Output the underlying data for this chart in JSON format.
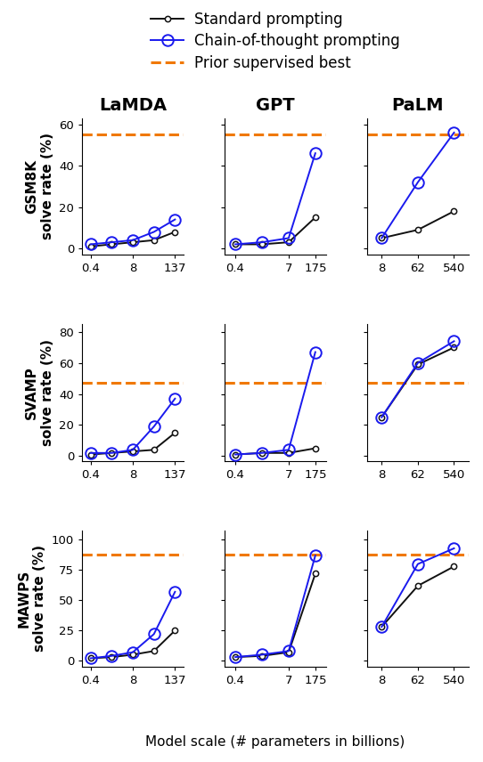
{
  "models": [
    "LaMDA",
    "GPT",
    "PaLM"
  ],
  "datasets": [
    "GSM8K",
    "SVAMP",
    "MAWPS"
  ],
  "x_tick_labels": {
    "LaMDA": [
      "0.4",
      "8",
      "137"
    ],
    "GPT": [
      "0.4",
      "7",
      "175"
    ],
    "PaLM": [
      "8",
      "62",
      "540"
    ]
  },
  "x_positions": {
    "LaMDA": [
      0,
      1,
      2,
      3,
      4
    ],
    "GPT": [
      0,
      1,
      2,
      3
    ],
    "PaLM": [
      0,
      1,
      2
    ]
  },
  "x_tick_positions": {
    "LaMDA": [
      0,
      2,
      4
    ],
    "GPT": [
      0,
      2,
      3
    ],
    "PaLM": [
      0,
      1,
      2
    ]
  },
  "standard": {
    "LaMDA": {
      "GSM8K": [
        1,
        2,
        3,
        4,
        8
      ],
      "SVAMP": [
        1,
        2,
        3,
        4,
        15
      ],
      "MAWPS": [
        2,
        3,
        5,
        8,
        25
      ]
    },
    "GPT": {
      "GSM8K": [
        2,
        2,
        3,
        15
      ],
      "SVAMP": [
        1,
        2,
        2,
        5
      ],
      "MAWPS": [
        3,
        4,
        7,
        72
      ]
    },
    "PaLM": {
      "GSM8K": [
        5,
        9,
        18
      ],
      "SVAMP": [
        25,
        59,
        70
      ],
      "MAWPS": [
        28,
        62,
        78
      ]
    }
  },
  "chain_of_thought": {
    "LaMDA": {
      "GSM8K": [
        2,
        3,
        4,
        8,
        14
      ],
      "SVAMP": [
        2,
        2,
        4,
        19,
        37
      ],
      "MAWPS": [
        2,
        4,
        7,
        22,
        57
      ]
    },
    "GPT": {
      "GSM8K": [
        2,
        3,
        5,
        46
      ],
      "SVAMP": [
        1,
        2,
        4,
        67
      ],
      "MAWPS": [
        3,
        5,
        8,
        87
      ]
    },
    "PaLM": {
      "GSM8K": [
        5,
        32,
        56
      ],
      "SVAMP": [
        25,
        60,
        74
      ],
      "MAWPS": [
        28,
        80,
        93
      ]
    }
  },
  "prior_best": {
    "GSM8K": 55,
    "SVAMP": 47,
    "MAWPS": 88
  },
  "ylims": {
    "GSM8K": [
      -3,
      63
    ],
    "SVAMP": [
      -3,
      85
    ],
    "MAWPS": [
      -5,
      108
    ]
  },
  "yticks": {
    "GSM8K": [
      0,
      20,
      40,
      60
    ],
    "SVAMP": [
      0,
      20,
      40,
      60,
      80
    ],
    "MAWPS": [
      0,
      25,
      50,
      75,
      100
    ]
  },
  "standard_color": "#111111",
  "cot_color": "#1a1aee",
  "prior_color": "#f07800",
  "ms_std": 4.5,
  "ms_cot": 9,
  "lw": 1.4,
  "title_fontsize": 14,
  "label_fontsize": 11,
  "tick_fontsize": 9.5,
  "legend_fontsize": 12
}
